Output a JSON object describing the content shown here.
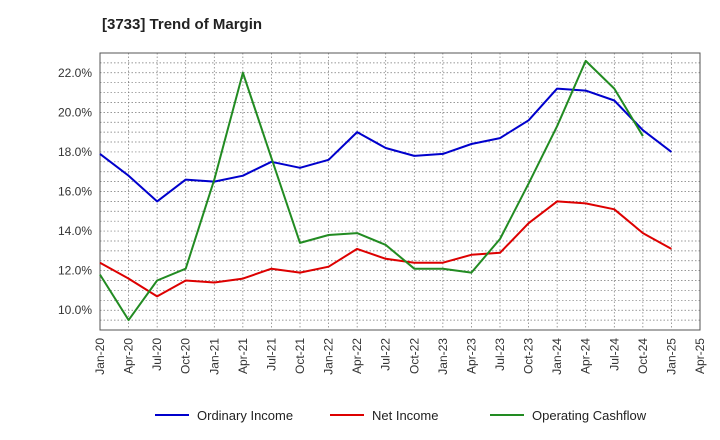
{
  "chart_data": {
    "type": "line",
    "title": "[3733]  Trend of Margin",
    "xlabel": "",
    "ylabel": "",
    "x": [
      "Jan-20",
      "Apr-20",
      "Jul-20",
      "Oct-20",
      "Jan-21",
      "Apr-21",
      "Jul-21",
      "Oct-21",
      "Jan-22",
      "Apr-22",
      "Jul-22",
      "Oct-22",
      "Jan-23",
      "Apr-23",
      "Jul-23",
      "Oct-23",
      "Jan-24",
      "Apr-24",
      "Jul-24",
      "Oct-24",
      "Jan-25",
      "Apr-25"
    ],
    "ylim": [
      9.0,
      23.0
    ],
    "yticks": [
      10.0,
      12.0,
      14.0,
      16.0,
      18.0,
      20.0,
      22.0
    ],
    "ytick_labels": [
      "10.0%",
      "12.0%",
      "14.0%",
      "16.0%",
      "18.0%",
      "20.0%",
      "22.0%"
    ],
    "grid": true,
    "legend_position": "bottom",
    "series": [
      {
        "name": "Ordinary Income",
        "color": "#0000cc",
        "values": [
          17.9,
          16.8,
          15.5,
          16.6,
          16.5,
          16.8,
          17.5,
          17.2,
          17.6,
          19.0,
          18.2,
          17.8,
          17.9,
          18.4,
          18.7,
          19.6,
          21.2,
          21.1,
          20.6,
          19.1,
          18.0,
          null
        ]
      },
      {
        "name": "Net Income",
        "color": "#dd0000",
        "values": [
          12.4,
          11.6,
          10.7,
          11.5,
          11.4,
          11.6,
          12.1,
          11.9,
          12.2,
          13.1,
          12.6,
          12.4,
          12.4,
          12.8,
          12.9,
          14.4,
          15.5,
          15.4,
          15.1,
          13.9,
          13.1,
          null
        ]
      },
      {
        "name": "Operating Cashflow",
        "color": "#228b22",
        "values": [
          11.8,
          9.5,
          11.5,
          12.1,
          16.6,
          22.0,
          17.7,
          13.4,
          13.8,
          13.9,
          13.3,
          12.1,
          12.1,
          11.9,
          13.6,
          16.4,
          19.3,
          22.6,
          21.2,
          18.8,
          null,
          null
        ]
      }
    ]
  }
}
